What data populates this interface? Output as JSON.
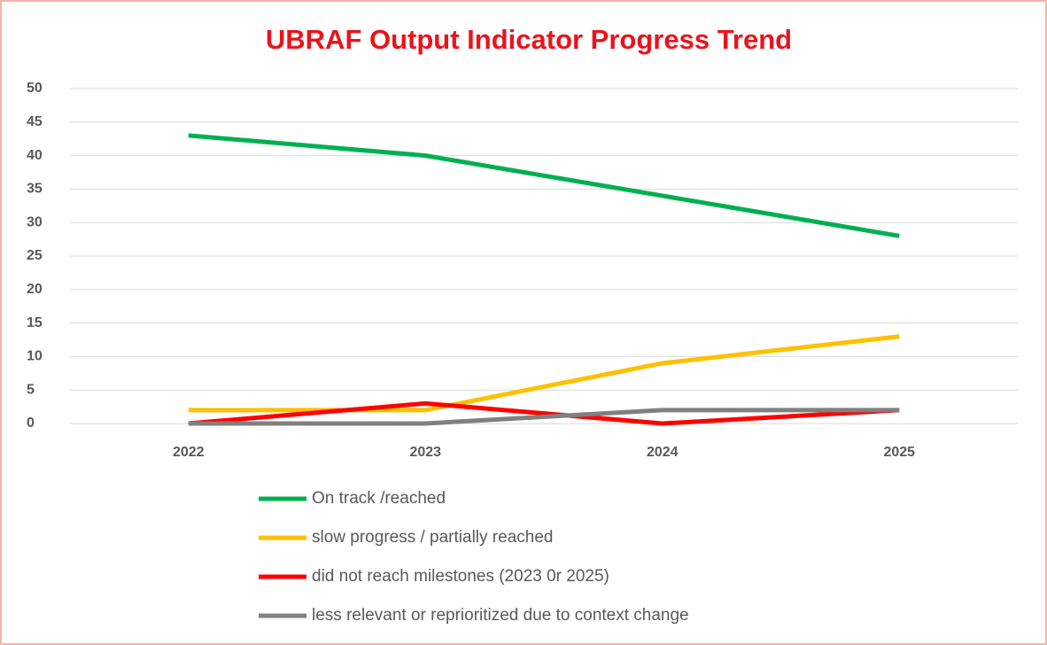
{
  "chart_data": {
    "type": "line",
    "title": "UBRAF Output Indicator Progress Trend",
    "categories": [
      "2022",
      "2023",
      "2024",
      "2025"
    ],
    "series": [
      {
        "name": "On track /reached",
        "color": "#00b050",
        "values": [
          43,
          40,
          34,
          28
        ]
      },
      {
        "name": "slow progress / partially reached",
        "color": "#ffc000",
        "values": [
          2,
          2,
          9,
          13
        ]
      },
      {
        "name": "did not reach milestones (2023 0r 2025)",
        "color": "#ff0000",
        "values": [
          0,
          3,
          0,
          2
        ]
      },
      {
        "name": "less relevant or reprioritized due to context change",
        "color": "#808080",
        "values": [
          0,
          0,
          2,
          2
        ]
      }
    ],
    "ylim": [
      0,
      50
    ],
    "yticks": [
      0,
      5,
      10,
      15,
      20,
      25,
      30,
      35,
      40,
      45,
      50
    ],
    "grid": true,
    "legend": "bottom"
  }
}
